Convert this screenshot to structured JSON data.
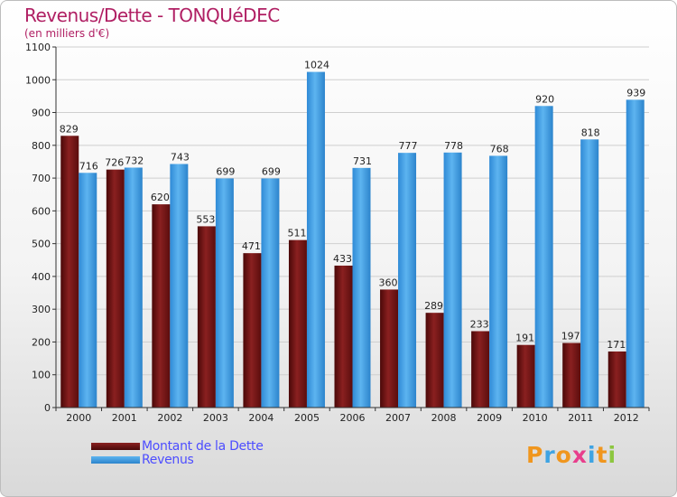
{
  "chart_data": {
    "type": "bar",
    "title": "Revenus/Dette - TONQUéDEC",
    "subtitle": "(en milliers d'€)",
    "categories": [
      "2000",
      "2001",
      "2002",
      "2003",
      "2004",
      "2005",
      "2006",
      "2007",
      "2008",
      "2009",
      "2010",
      "2011",
      "2012"
    ],
    "series": [
      {
        "name": "Montant de la Dette",
        "color": "#7a1a1a",
        "values": [
          829,
          726,
          620,
          553,
          471,
          511,
          433,
          360,
          289,
          233,
          191,
          197,
          171
        ]
      },
      {
        "name": "Revenus",
        "color": "#3a9ce0",
        "values": [
          716,
          732,
          743,
          699,
          699,
          1024,
          731,
          777,
          778,
          768,
          920,
          818,
          939
        ]
      }
    ],
    "ylim": [
      0,
      1100
    ],
    "yticks": [
      0,
      100,
      200,
      300,
      400,
      500,
      600,
      700,
      800,
      900,
      1000,
      1100
    ],
    "grid": true,
    "legend": "bottom-left"
  },
  "branding": {
    "logo_text": "Proxiti",
    "logo_colors": [
      "#f0961e",
      "#3ea3e3",
      "#f0961e",
      "#e83e8c",
      "#3ea3e3",
      "#f0961e",
      "#8cc63f"
    ]
  }
}
